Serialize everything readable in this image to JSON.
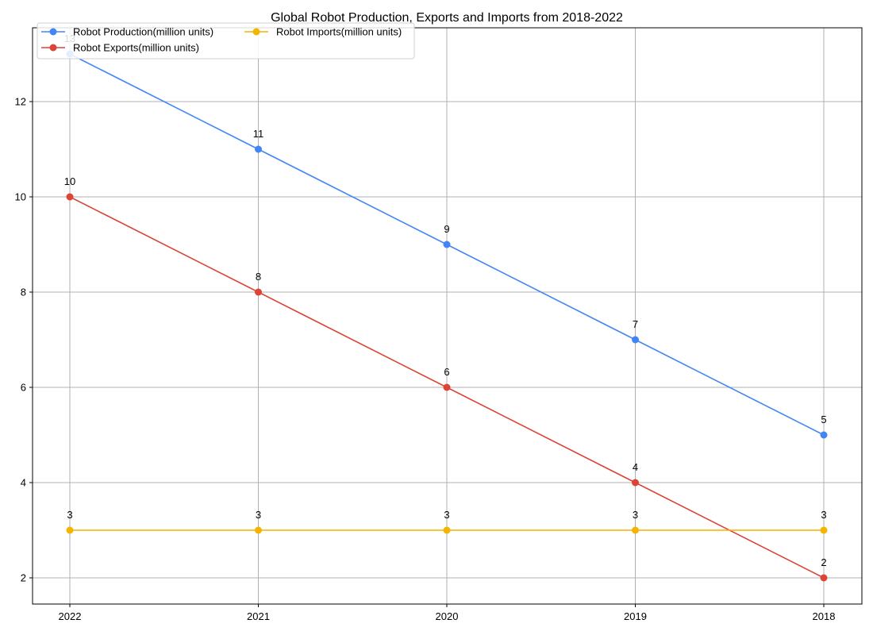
{
  "chart_data": {
    "type": "line",
    "title": "Global Robot Production, Exports and Imports from 2018-2022",
    "xlabel": "",
    "ylabel": "",
    "categories": [
      "2022",
      "2021",
      "2020",
      "2019",
      "2018"
    ],
    "yticks": [
      2,
      4,
      6,
      8,
      10,
      12
    ],
    "ylim": [
      1.45,
      13.55
    ],
    "grid": true,
    "legend_position": "top-left",
    "legend_columns": 2,
    "series": [
      {
        "name": "Robot Production(million units)",
        "values": [
          13,
          11,
          9,
          7,
          5
        ],
        "color": "#4285F4"
      },
      {
        "name": "Robot Exports(million units)",
        "values": [
          10,
          8,
          6,
          4,
          2
        ],
        "color": "#DB4437"
      },
      {
        "name": "Robot Imports(million units)",
        "values": [
          3,
          3,
          3,
          3,
          3
        ],
        "color": "#F4B400"
      }
    ]
  }
}
